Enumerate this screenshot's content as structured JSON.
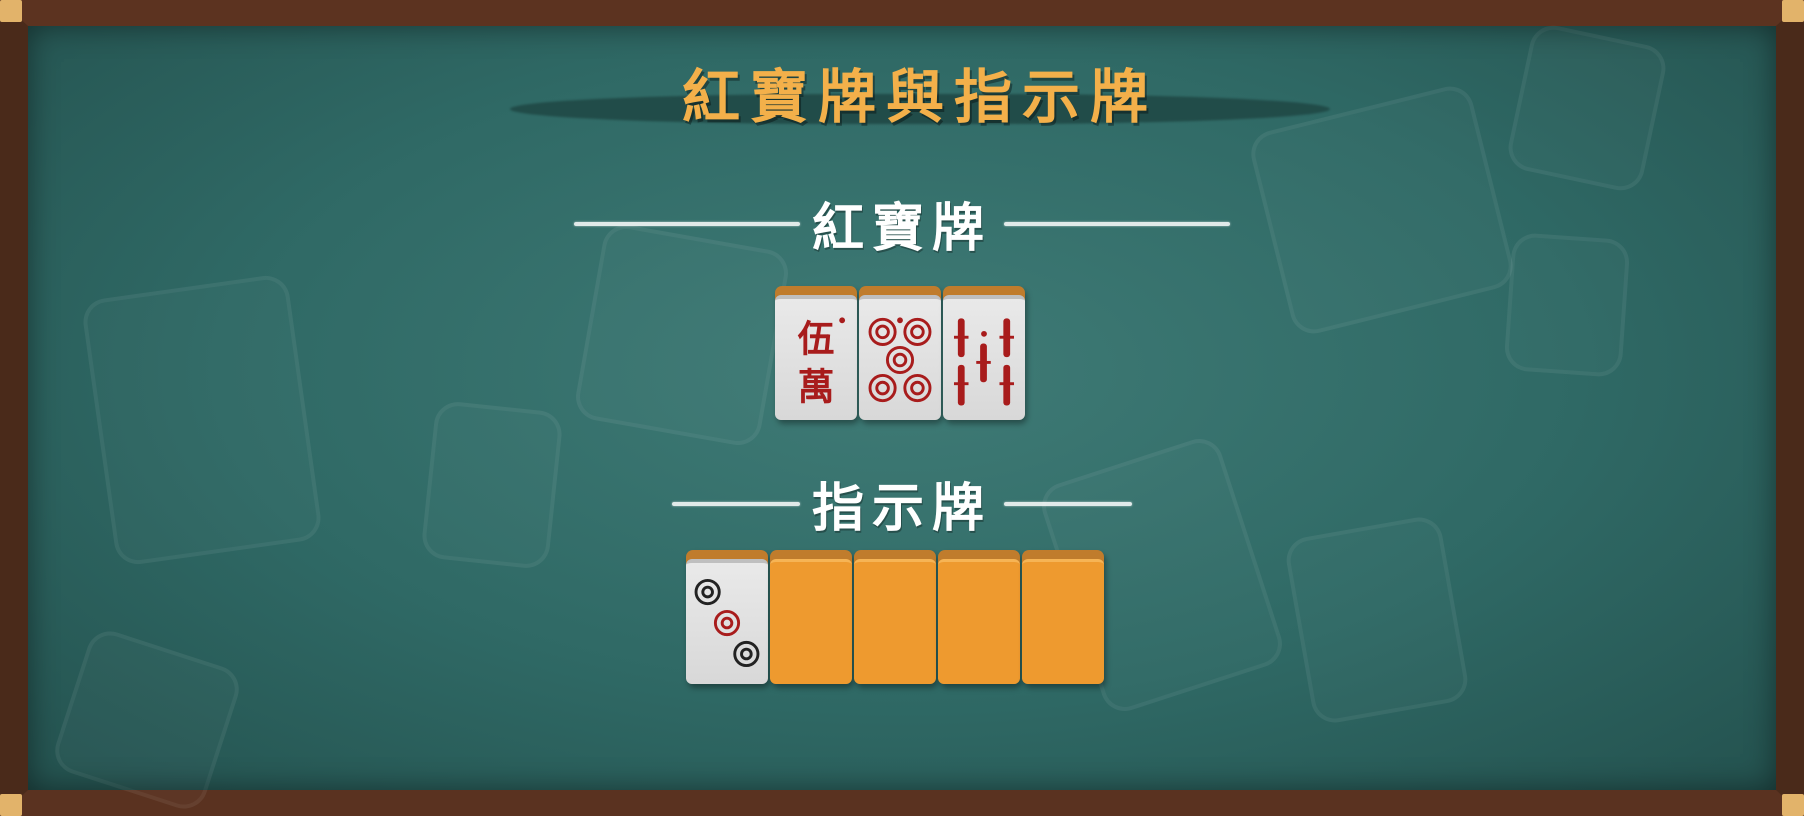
{
  "title": "紅寶牌與指示牌",
  "sections": {
    "red_dora": {
      "heading": "紅寶牌",
      "tiles": [
        {
          "name": "5-man-red",
          "glyph_top": "伍",
          "glyph_bottom": "萬",
          "color": "#a81c1c"
        },
        {
          "name": "5-pin-red",
          "color": "#a81c1c"
        },
        {
          "name": "5-sou-red",
          "color": "#a81c1c"
        }
      ]
    },
    "indicator": {
      "heading": "指示牌",
      "tiles": [
        {
          "name": "3-pin",
          "face": "up"
        },
        {
          "name": "hidden-tile-1",
          "face": "down"
        },
        {
          "name": "hidden-tile-2",
          "face": "down"
        },
        {
          "name": "hidden-tile-3",
          "face": "down"
        },
        {
          "name": "hidden-tile-4",
          "face": "down"
        }
      ]
    }
  },
  "colors": {
    "title": "#f3b04a",
    "felt": "#2f6965",
    "frame": "#5c3320",
    "tile_back": "#ee9a2f",
    "red_tile_ink": "#a81c1c"
  }
}
